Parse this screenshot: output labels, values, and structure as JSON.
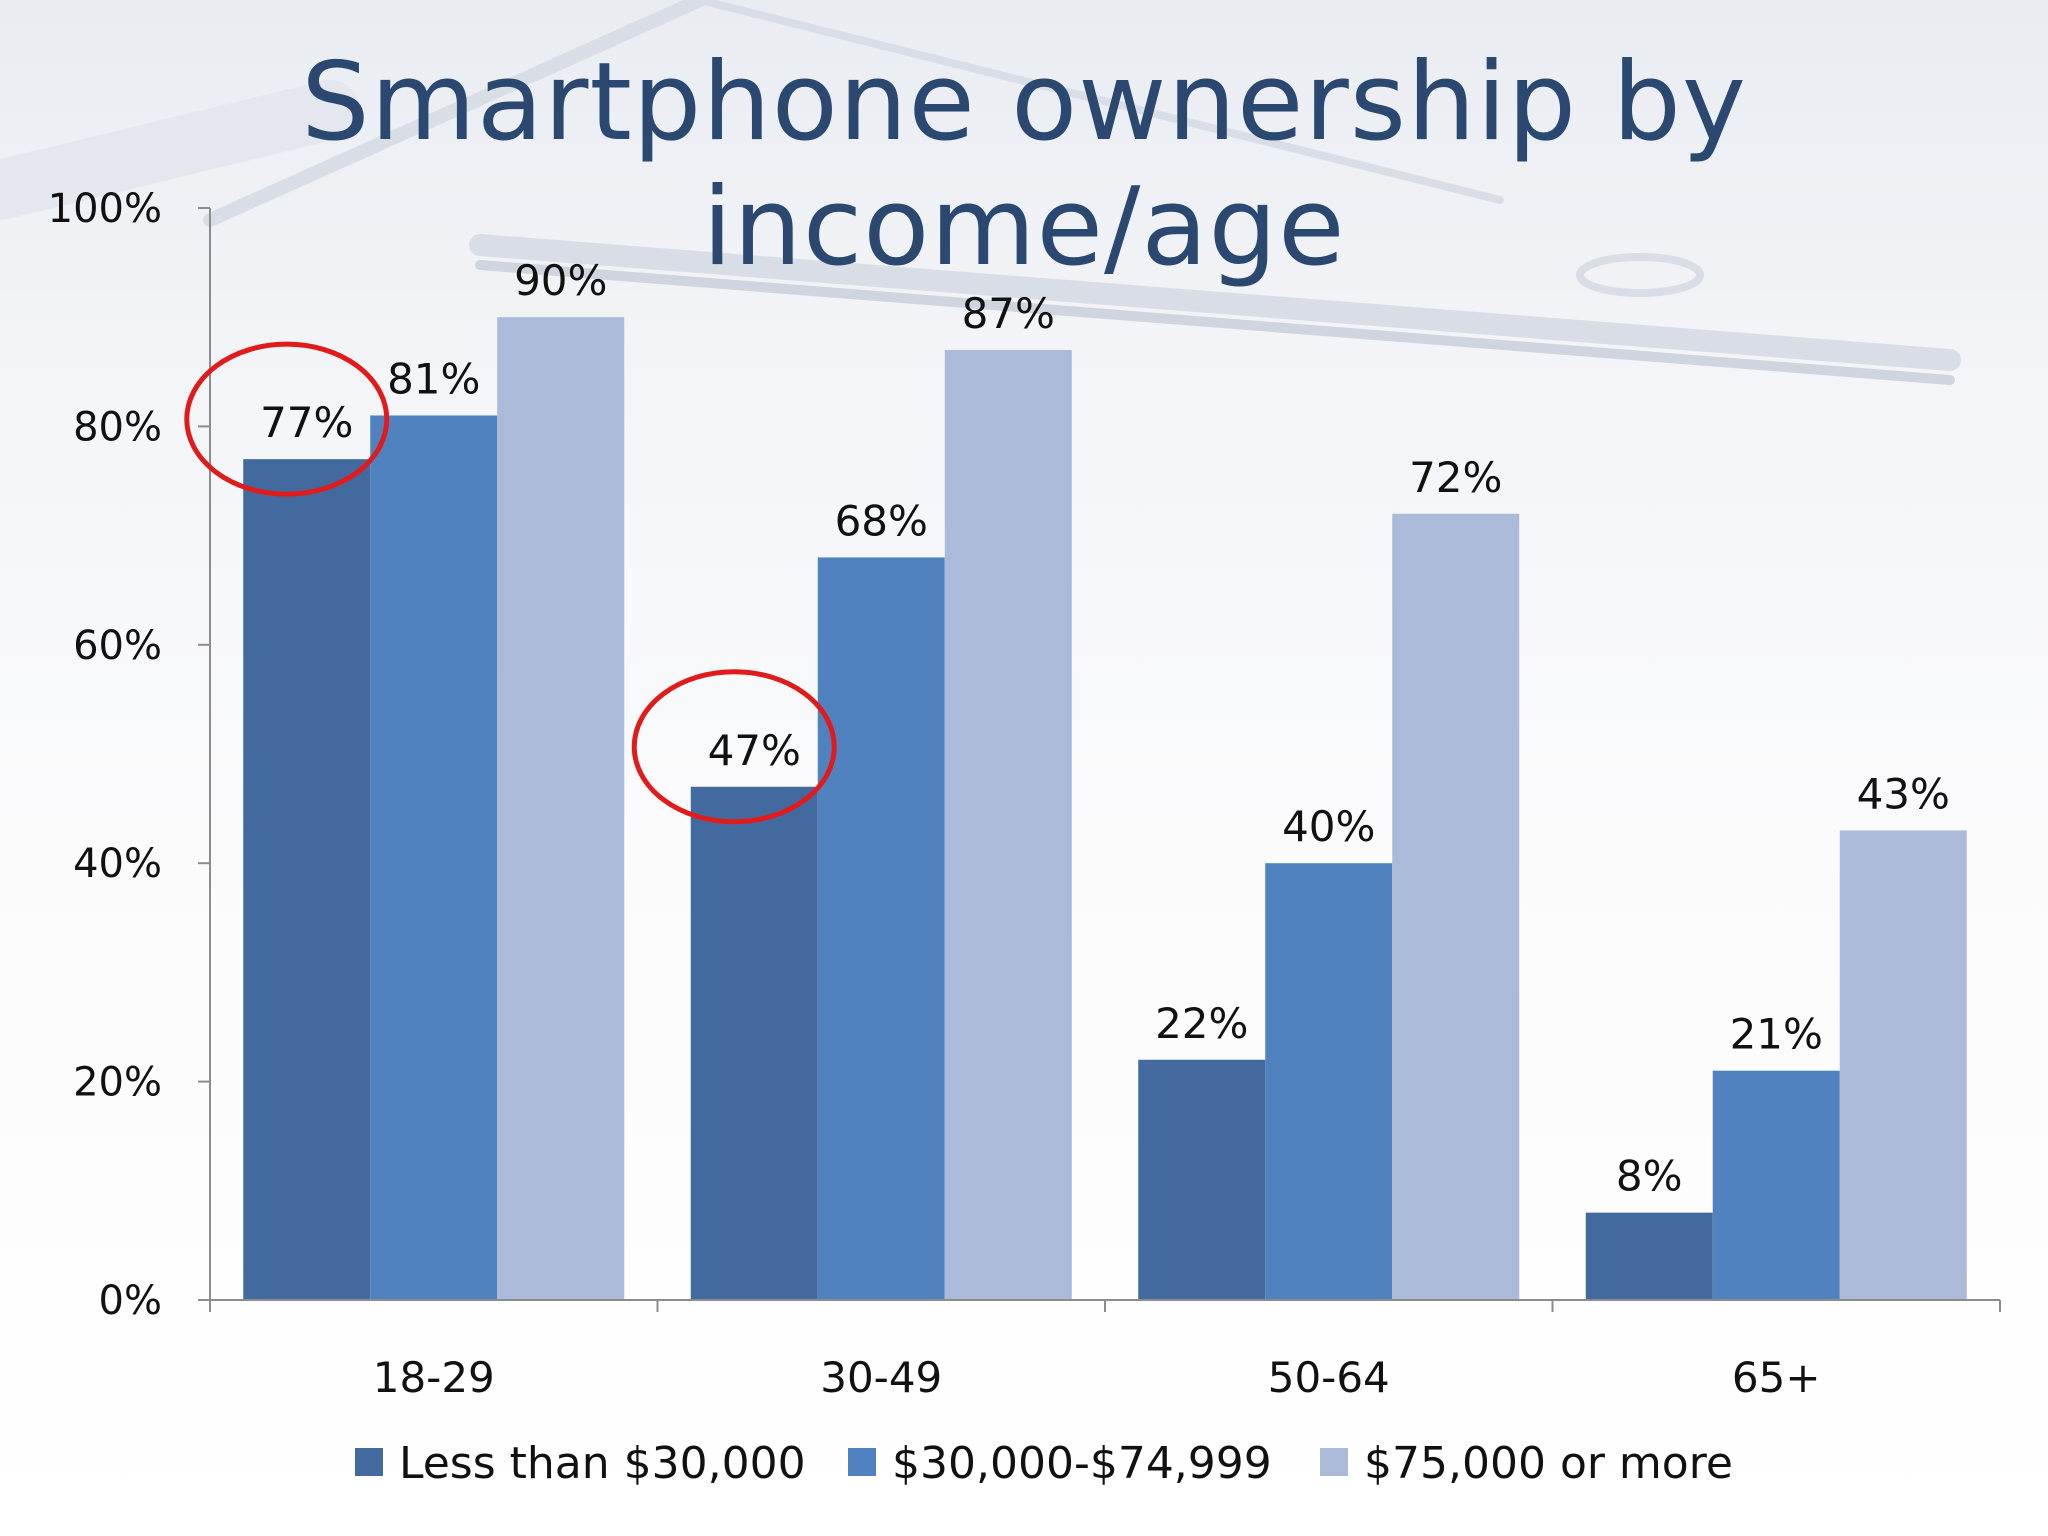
{
  "slide": {
    "title": "Smartphone ownership by income/age"
  },
  "chart_data": {
    "type": "bar",
    "categories": [
      "18-29",
      "30-49",
      "50-64",
      "65+"
    ],
    "series": [
      {
        "name": "Less than $30,000",
        "color": "#436a9e",
        "values": [
          77,
          47,
          22,
          8
        ]
      },
      {
        "name": "$30,000-$74,999",
        "color": "#5082c0",
        "values": [
          81,
          68,
          40,
          21
        ]
      },
      {
        "name": "$75,000 or more",
        "color": "#abbad8",
        "values": [
          90,
          87,
          72,
          43
        ]
      }
    ],
    "ylim": [
      0,
      100
    ],
    "yticks": [
      0,
      20,
      40,
      60,
      80,
      100
    ],
    "ytick_labels": [
      "0%",
      "20%",
      "40%",
      "60%",
      "80%",
      "100%"
    ],
    "data_label_suffix": "%",
    "legend_position": "bottom",
    "grid": false,
    "annotations": [
      {
        "type": "circle",
        "category": "18-29",
        "series": "Less than $30,000",
        "color": "#e11b1b"
      },
      {
        "type": "circle",
        "category": "30-49",
        "series": "Less than $30,000",
        "color": "#e11b1b"
      }
    ]
  }
}
